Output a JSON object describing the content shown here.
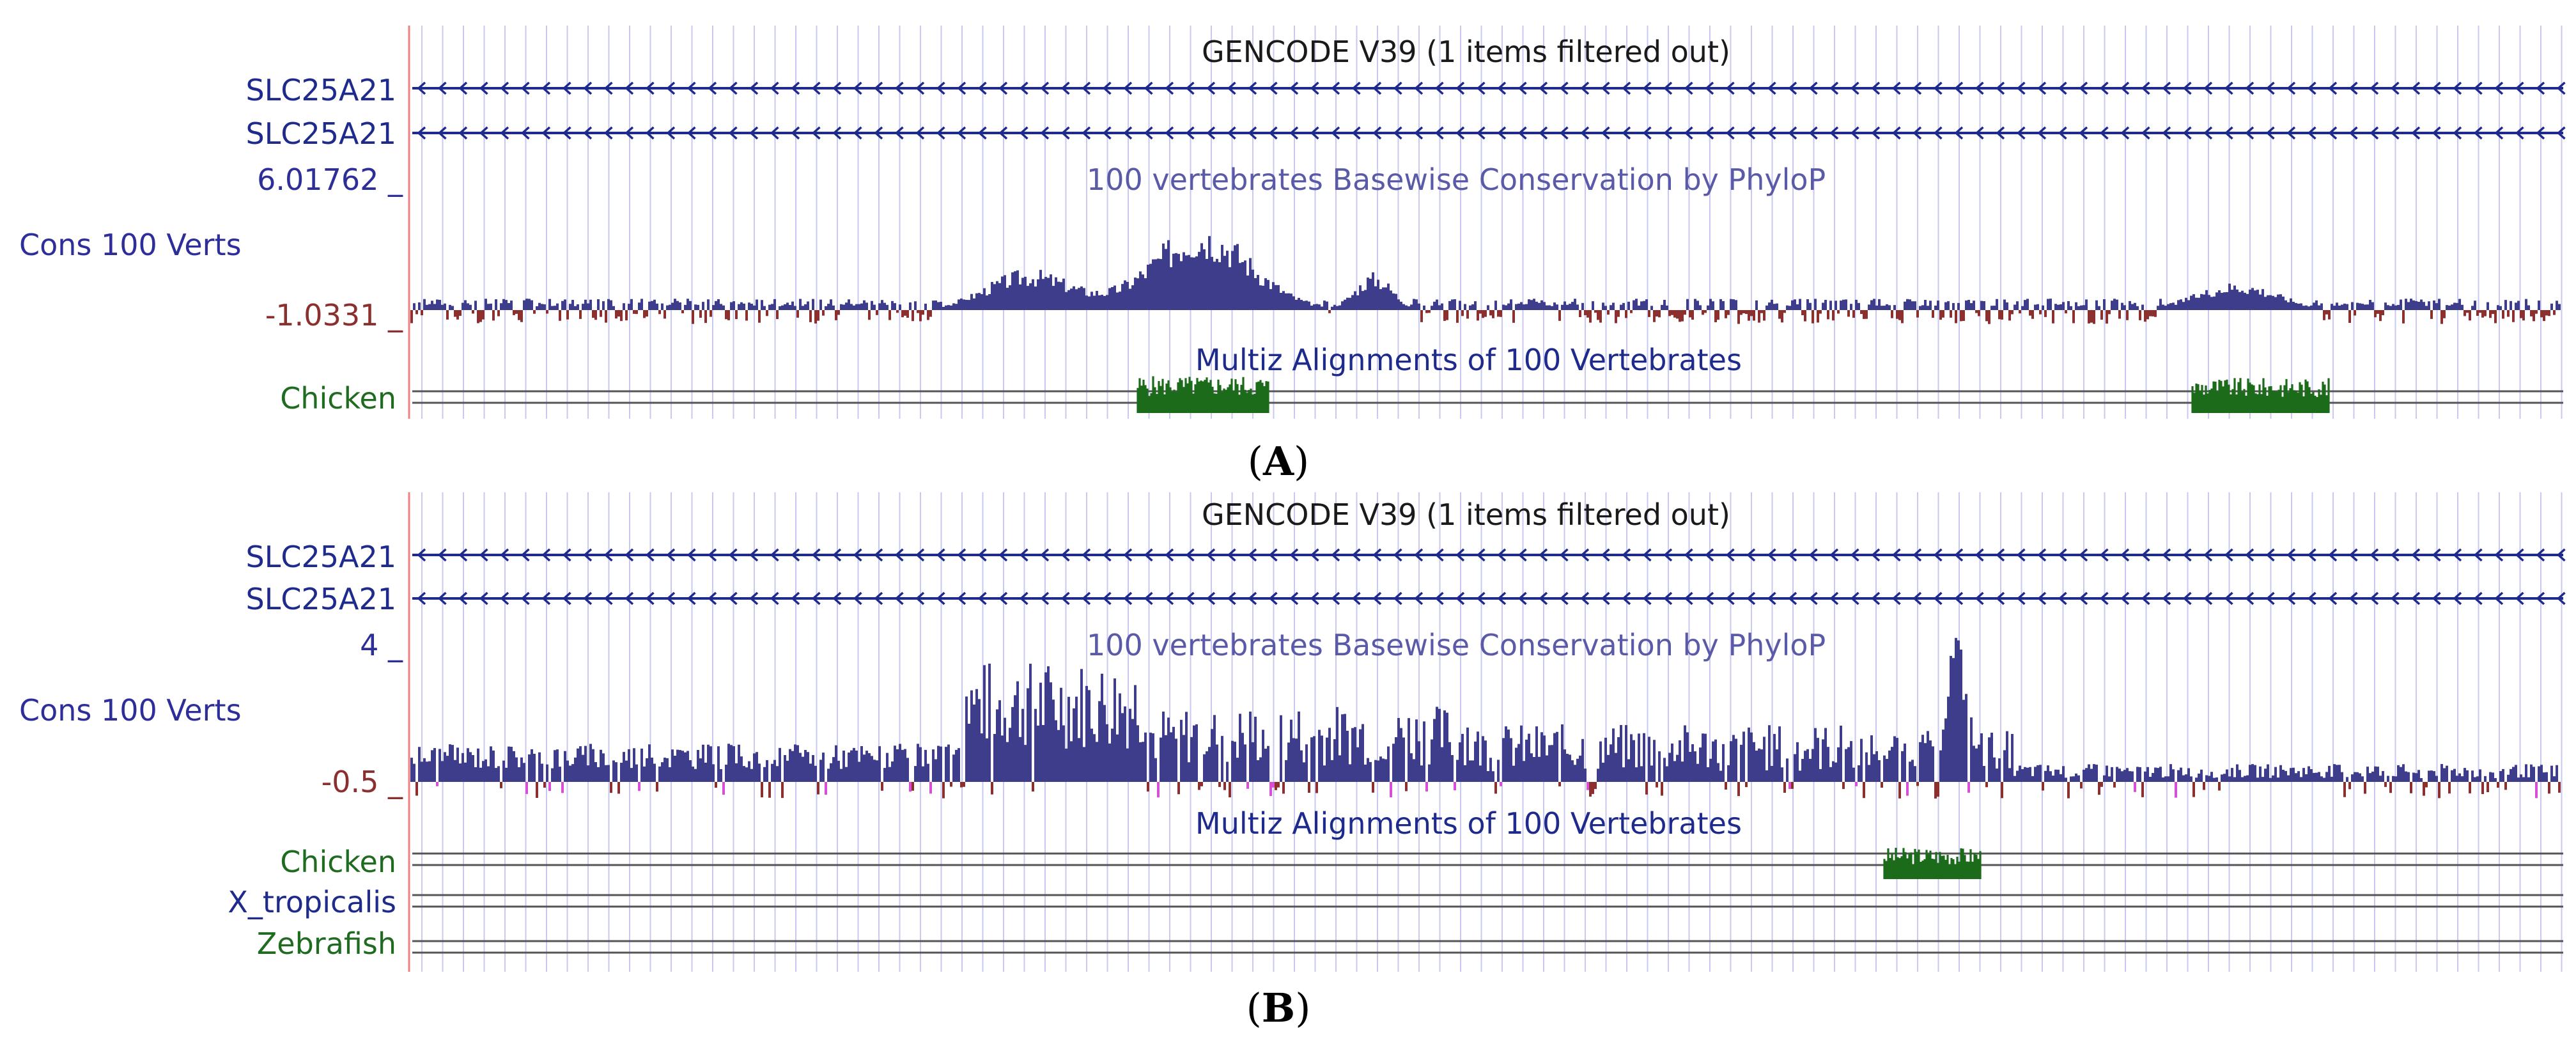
{
  "panels": [
    {
      "id": "A",
      "caption_letter": "A",
      "gencode_title": "GENCODE V39 (1 items filtered out)",
      "gene_tracks": [
        "SLC25A21",
        "SLC25A21"
      ],
      "phylop_title": "100 vertebrates Basewise Conservation by PhyloP",
      "cons_label": "Cons 100 Verts",
      "ymax_label": "6.01762 _",
      "ymin_label": "-1.0331 _",
      "ymax_value": 6.01762,
      "ymin_value": -1.0331,
      "multiz_title": "Multiz Alignments of 100 Vertebrates",
      "species": [
        "Chicken"
      ]
    },
    {
      "id": "B",
      "caption_letter": "B",
      "gencode_title": "GENCODE V39 (1 items filtered out)",
      "gene_tracks": [
        "SLC25A21",
        "SLC25A21"
      ],
      "phylop_title": "100 vertebrates Basewise Conservation by PhyloP",
      "cons_label": "Cons 100 Verts",
      "ymax_label": "4 _",
      "ymin_label": "-0.5 _",
      "ymax_value": 4,
      "ymin_value": -0.5,
      "multiz_title": "Multiz Alignments of 100 Vertebrates",
      "species": [
        "Chicken",
        "X_tropicalis",
        "Zebrafish"
      ]
    }
  ],
  "colors": {
    "gene": "#1e2a8c",
    "blue_label": "#2e2e9a",
    "title_dark": "#1a1a1a",
    "phylop_title": "#5a5aa8",
    "pos_bar": "#3d3d8c",
    "neg_bar": "#8b2f2f",
    "neg_bar_alt": "#d64fd6",
    "species": "#1f6b1f",
    "conservation_fill": "#1b6b1b",
    "grid": "#c8c8f0",
    "divider": "#f08080",
    "min_label": "#8b2f2f"
  }
}
